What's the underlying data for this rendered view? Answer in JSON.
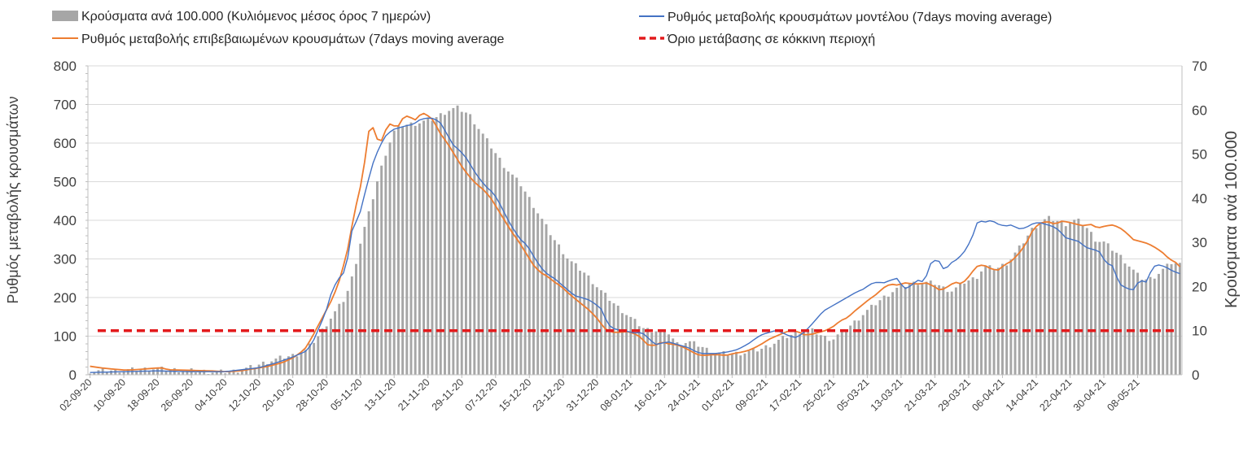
{
  "chart_data": {
    "type": "bar+line",
    "legend": {
      "cases_per_100k": "Κρούσματα ανά 100.000  (Κυλιόμενος μέσος όρος 7 ημερών)",
      "model_rate": "Ρυθμός μεταβολής κρουσμάτων μοντέλου (7days moving average)",
      "confirmed_rate": "Ρυθμός μεταβολής επιβεβαιωμένων κρουσμάτων (7days moving average",
      "red_threshold": "Όριο μετάβασης σε κόκκινη περιοχή"
    },
    "y_left": {
      "title": "Ρυθμός μεταβολής κρουσμάτων",
      "range": [
        0,
        800
      ],
      "ticks": [
        "0",
        "100",
        "200",
        "300",
        "400",
        "500",
        "600",
        "700",
        "800"
      ]
    },
    "y_right": {
      "title": "Κρούσματα ανά 100.000",
      "range": [
        0,
        70
      ],
      "ticks": [
        "0",
        "10",
        "20",
        "30",
        "40",
        "50",
        "60",
        "70"
      ]
    },
    "x_tick_labels": [
      "02-09-20",
      "10-09-20",
      "18-09-20",
      "26-09-20",
      "04-10-20",
      "12-10-20",
      "20-10-20",
      "28-10-20",
      "05-11-20",
      "13-11-20",
      "21-11-20",
      "29-11-20",
      "07-12-20",
      "15-12-20",
      "23-12-20",
      "31-12-20",
      "08-01-21",
      "16-01-21",
      "24-01-21",
      "01-02-21",
      "09-02-21",
      "17-02-21",
      "25-02-21",
      "05-03-21",
      "13-03-21",
      "21-03-21",
      "29-03-21",
      "06-04-21",
      "14-04-21",
      "22-04-21",
      "30-04-21",
      "08-05-21"
    ],
    "day_count": 259,
    "day_step": 8,
    "red_threshold_value": 10,
    "colors": {
      "bars": "#a6a6a6",
      "model_line": "#4472c4",
      "confirmed_line": "#ed7d31",
      "threshold": "#e31a1c",
      "grid": "#d9d9d9",
      "axis": "#bfbfbf"
    },
    "bars_anchor_points": [
      [
        0,
        0.8
      ],
      [
        10,
        1.1
      ],
      [
        16,
        1.4
      ],
      [
        22,
        1.1
      ],
      [
        28,
        0.8
      ],
      [
        32,
        0.6
      ],
      [
        36,
        0.8
      ],
      [
        40,
        1.6
      ],
      [
        44,
        2.8
      ],
      [
        48,
        3.9
      ],
      [
        51,
        4.4
      ],
      [
        54,
        5.5
      ],
      [
        57,
        8.5
      ],
      [
        60,
        12.5
      ],
      [
        62,
        15
      ],
      [
        64,
        17.5
      ],
      [
        66,
        23
      ],
      [
        68,
        31
      ],
      [
        70,
        37
      ],
      [
        72,
        44
      ],
      [
        74,
        50
      ],
      [
        76,
        55
      ],
      [
        78,
        56.5
      ],
      [
        82,
        57
      ],
      [
        86,
        58
      ],
      [
        90,
        60
      ],
      [
        92,
        60.5
      ],
      [
        95,
        59
      ],
      [
        98,
        55
      ],
      [
        101,
        51
      ],
      [
        104,
        47
      ],
      [
        108,
        43
      ],
      [
        112,
        37
      ],
      [
        116,
        31
      ],
      [
        120,
        26
      ],
      [
        124,
        23
      ],
      [
        128,
        19
      ],
      [
        132,
        15.5
      ],
      [
        136,
        12.5
      ],
      [
        139,
        10.3
      ],
      [
        142,
        10
      ],
      [
        145,
        9.5
      ],
      [
        147,
        7
      ],
      [
        150,
        7.5
      ],
      [
        153,
        6.5
      ],
      [
        156,
        5
      ],
      [
        160,
        4.7
      ],
      [
        164,
        5
      ],
      [
        168,
        5.8
      ],
      [
        171,
        7
      ],
      [
        174,
        8.5
      ],
      [
        178,
        9.8
      ],
      [
        181,
        10
      ],
      [
        184,
        8.5
      ],
      [
        186,
        8
      ],
      [
        188,
        9.5
      ],
      [
        191,
        11.5
      ],
      [
        194,
        14
      ],
      [
        198,
        17
      ],
      [
        202,
        19.5
      ],
      [
        205,
        20.5
      ],
      [
        208,
        21
      ],
      [
        212,
        20.7
      ],
      [
        214,
        19.5
      ],
      [
        216,
        19
      ],
      [
        219,
        21
      ],
      [
        222,
        22
      ],
      [
        224,
        24.5
      ],
      [
        227,
        24
      ],
      [
        230,
        25.5
      ],
      [
        233,
        29
      ],
      [
        236,
        33
      ],
      [
        238,
        34.5
      ],
      [
        240,
        35.5
      ],
      [
        242,
        35
      ],
      [
        244,
        34
      ],
      [
        246,
        35
      ],
      [
        248,
        34.8
      ],
      [
        250,
        33
      ],
      [
        252,
        30.5
      ],
      [
        254,
        30
      ],
      [
        256,
        28.5
      ],
      [
        258,
        27
      ],
      [
        261,
        24
      ],
      [
        263,
        22
      ],
      [
        265,
        21.5
      ],
      [
        267,
        22.5
      ],
      [
        269,
        24
      ],
      [
        271,
        25.5
      ],
      [
        273,
        25
      ]
    ],
    "confirmed_anchor_points": [
      [
        0,
        22
      ],
      [
        3,
        18
      ],
      [
        6,
        15
      ],
      [
        10,
        12
      ],
      [
        14,
        14
      ],
      [
        18,
        17
      ],
      [
        20,
        18
      ],
      [
        22,
        13
      ],
      [
        26,
        12
      ],
      [
        30,
        11
      ],
      [
        34,
        10
      ],
      [
        38,
        8
      ],
      [
        42,
        10
      ],
      [
        46,
        16
      ],
      [
        50,
        22
      ],
      [
        54,
        32
      ],
      [
        57,
        45
      ],
      [
        60,
        65
      ],
      [
        62,
        95
      ],
      [
        64,
        130
      ],
      [
        66,
        165
      ],
      [
        68,
        200
      ],
      [
        70,
        250
      ],
      [
        72,
        320
      ],
      [
        74,
        420
      ],
      [
        76,
        500
      ],
      [
        77,
        560
      ],
      [
        78,
        630
      ],
      [
        79,
        645
      ],
      [
        80,
        620
      ],
      [
        81,
        595
      ],
      [
        82,
        615
      ],
      [
        83,
        640
      ],
      [
        84,
        650
      ],
      [
        85,
        645
      ],
      [
        86,
        640
      ],
      [
        87,
        655
      ],
      [
        88,
        672
      ],
      [
        90,
        665
      ],
      [
        91,
        660
      ],
      [
        92,
        670
      ],
      [
        93,
        678
      ],
      [
        94,
        675
      ],
      [
        96,
        660
      ],
      [
        98,
        625
      ],
      [
        100,
        600
      ],
      [
        102,
        570
      ],
      [
        104,
        540
      ],
      [
        106,
        515
      ],
      [
        108,
        495
      ],
      [
        110,
        480
      ],
      [
        112,
        460
      ],
      [
        114,
        430
      ],
      [
        116,
        400
      ],
      [
        118,
        370
      ],
      [
        120,
        345
      ],
      [
        122,
        315
      ],
      [
        124,
        285
      ],
      [
        126,
        265
      ],
      [
        128,
        255
      ],
      [
        130,
        240
      ],
      [
        132,
        228
      ],
      [
        134,
        210
      ],
      [
        136,
        195
      ],
      [
        138,
        180
      ],
      [
        140,
        165
      ],
      [
        142,
        145
      ],
      [
        144,
        120
      ],
      [
        146,
        110
      ],
      [
        148,
        110
      ],
      [
        150,
        112
      ],
      [
        152,
        108
      ],
      [
        154,
        98
      ],
      [
        156,
        78
      ],
      [
        158,
        75
      ],
      [
        160,
        85
      ],
      [
        162,
        80
      ],
      [
        164,
        78
      ],
      [
        166,
        72
      ],
      [
        168,
        62
      ],
      [
        170,
        52
      ],
      [
        172,
        50
      ],
      [
        174,
        52
      ],
      [
        176,
        52
      ],
      [
        178,
        50
      ],
      [
        180,
        55
      ],
      [
        182,
        58
      ],
      [
        184,
        62
      ],
      [
        186,
        70
      ],
      [
        188,
        80
      ],
      [
        190,
        92
      ],
      [
        192,
        100
      ],
      [
        194,
        108
      ],
      [
        196,
        115
      ],
      [
        198,
        112
      ],
      [
        200,
        103
      ],
      [
        202,
        105
      ],
      [
        204,
        110
      ],
      [
        206,
        115
      ],
      [
        208,
        125
      ],
      [
        210,
        140
      ],
      [
        212,
        148
      ],
      [
        214,
        165
      ],
      [
        216,
        180
      ],
      [
        218,
        195
      ],
      [
        220,
        208
      ],
      [
        222,
        225
      ],
      [
        224,
        235
      ],
      [
        226,
        232
      ],
      [
        228,
        238
      ],
      [
        230,
        236
      ],
      [
        232,
        235
      ],
      [
        234,
        238
      ],
      [
        236,
        230
      ],
      [
        238,
        218
      ],
      [
        240,
        228
      ],
      [
        242,
        240
      ],
      [
        244,
        235
      ],
      [
        246,
        255
      ],
      [
        248,
        280
      ],
      [
        250,
        285
      ],
      [
        252,
        275
      ],
      [
        254,
        270
      ],
      [
        256,
        285
      ],
      [
        258,
        295
      ],
      [
        260,
        315
      ],
      [
        262,
        340
      ],
      [
        264,
        378
      ],
      [
        266,
        393
      ],
      [
        268,
        397
      ],
      [
        270,
        390
      ],
      [
        272,
        398
      ],
      [
        274,
        395
      ],
      [
        276,
        390
      ],
      [
        278,
        386
      ],
      [
        280,
        390
      ],
      [
        282,
        380
      ],
      [
        284,
        385
      ],
      [
        286,
        388
      ],
      [
        288,
        382
      ],
      [
        290,
        368
      ],
      [
        292,
        350
      ],
      [
        294,
        345
      ],
      [
        296,
        340
      ],
      [
        298,
        330
      ],
      [
        300,
        318
      ],
      [
        302,
        300
      ],
      [
        304,
        290
      ],
      [
        305,
        280
      ]
    ],
    "model_anchor_points": [
      [
        0,
        6
      ],
      [
        10,
        8
      ],
      [
        20,
        10
      ],
      [
        30,
        8
      ],
      [
        40,
        8
      ],
      [
        50,
        18
      ],
      [
        55,
        30
      ],
      [
        60,
        45
      ],
      [
        64,
        60
      ],
      [
        66,
        80
      ],
      [
        68,
        120
      ],
      [
        70,
        160
      ],
      [
        72,
        220
      ],
      [
        74,
        250
      ],
      [
        76,
        270
      ],
      [
        78,
        380
      ],
      [
        80,
        410
      ],
      [
        82,
        480
      ],
      [
        84,
        545
      ],
      [
        86,
        590
      ],
      [
        88,
        620
      ],
      [
        90,
        635
      ],
      [
        92,
        640
      ],
      [
        94,
        645
      ],
      [
        96,
        648
      ],
      [
        98,
        660
      ],
      [
        100,
        665
      ],
      [
        102,
        664
      ],
      [
        104,
        655
      ],
      [
        106,
        625
      ],
      [
        108,
        595
      ],
      [
        110,
        580
      ],
      [
        112,
        560
      ],
      [
        114,
        530
      ],
      [
        116,
        505
      ],
      [
        118,
        485
      ],
      [
        120,
        470
      ],
      [
        122,
        440
      ],
      [
        124,
        405
      ],
      [
        126,
        375
      ],
      [
        128,
        350
      ],
      [
        130,
        335
      ],
      [
        132,
        305
      ],
      [
        134,
        278
      ],
      [
        136,
        260
      ],
      [
        138,
        250
      ],
      [
        140,
        235
      ],
      [
        142,
        220
      ],
      [
        144,
        205
      ],
      [
        146,
        200
      ],
      [
        148,
        195
      ],
      [
        150,
        185
      ],
      [
        152,
        170
      ],
      [
        154,
        130
      ],
      [
        156,
        118
      ],
      [
        158,
        115
      ],
      [
        160,
        112
      ],
      [
        162,
        108
      ],
      [
        164,
        110
      ],
      [
        166,
        95
      ],
      [
        168,
        78
      ],
      [
        170,
        82
      ],
      [
        172,
        85
      ],
      [
        174,
        80
      ],
      [
        176,
        75
      ],
      [
        178,
        70
      ],
      [
        180,
        60
      ],
      [
        182,
        55
      ],
      [
        184,
        55
      ],
      [
        186,
        55
      ],
      [
        188,
        57
      ],
      [
        190,
        60
      ],
      [
        192,
        64
      ],
      [
        194,
        72
      ],
      [
        196,
        82
      ],
      [
        198,
        95
      ],
      [
        200,
        105
      ],
      [
        202,
        110
      ],
      [
        204,
        115
      ],
      [
        206,
        108
      ],
      [
        208,
        100
      ],
      [
        210,
        96
      ],
      [
        212,
        108
      ],
      [
        214,
        125
      ],
      [
        216,
        145
      ],
      [
        218,
        165
      ],
      [
        220,
        175
      ],
      [
        222,
        185
      ],
      [
        224,
        195
      ],
      [
        226,
        205
      ],
      [
        228,
        215
      ],
      [
        230,
        222
      ],
      [
        232,
        235
      ],
      [
        234,
        240
      ],
      [
        236,
        238
      ],
      [
        238,
        245
      ],
      [
        240,
        250
      ],
      [
        242,
        222
      ],
      [
        244,
        230
      ],
      [
        246,
        245
      ],
      [
        248,
        240
      ],
      [
        250,
        290
      ],
      [
        252,
        300
      ],
      [
        254,
        270
      ],
      [
        256,
        290
      ],
      [
        258,
        300
      ],
      [
        260,
        320
      ],
      [
        262,
        350
      ],
      [
        264,
        400
      ],
      [
        266,
        395
      ],
      [
        268,
        400
      ],
      [
        270,
        390
      ],
      [
        272,
        385
      ],
      [
        274,
        388
      ],
      [
        276,
        378
      ],
      [
        278,
        380
      ],
      [
        280,
        390
      ],
      [
        282,
        395
      ],
      [
        284,
        390
      ],
      [
        286,
        385
      ],
      [
        288,
        375
      ],
      [
        290,
        355
      ],
      [
        292,
        350
      ],
      [
        294,
        345
      ],
      [
        296,
        330
      ],
      [
        298,
        325
      ],
      [
        300,
        320
      ],
      [
        302,
        290
      ],
      [
        304,
        282
      ],
      [
        306,
        235
      ],
      [
        308,
        225
      ],
      [
        310,
        218
      ],
      [
        312,
        245
      ],
      [
        314,
        240
      ],
      [
        316,
        280
      ],
      [
        318,
        285
      ],
      [
        320,
        278
      ],
      [
        322,
        268
      ],
      [
        324,
        262
      ]
    ]
  }
}
